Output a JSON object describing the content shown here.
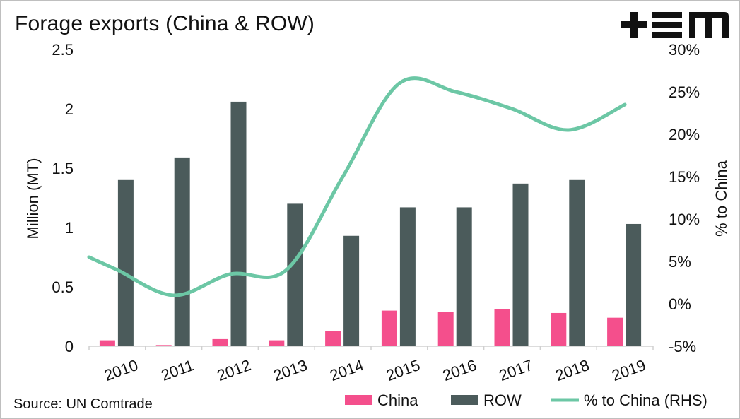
{
  "title": "Forage exports (China & ROW)",
  "source": "Source: UN Comtrade",
  "logo_icon": "tem-logo-icon",
  "colors": {
    "china": "#f44f8c",
    "row": "#4b5b5b",
    "line": "#6cc7a5",
    "axis": "#d0d0d0"
  },
  "chart_data": {
    "type": "bar",
    "categories": [
      "2010",
      "2011",
      "2012",
      "2013",
      "2014",
      "2015",
      "2016",
      "2017",
      "2018",
      "2019"
    ],
    "series": [
      {
        "name": "China",
        "type": "bar",
        "axis": "left",
        "values": [
          0.05,
          0.01,
          0.06,
          0.05,
          0.13,
          0.3,
          0.29,
          0.31,
          0.28,
          0.24
        ]
      },
      {
        "name": "ROW",
        "type": "bar",
        "axis": "left",
        "values": [
          1.4,
          1.59,
          2.06,
          1.2,
          0.93,
          1.17,
          1.17,
          1.37,
          1.4,
          1.03
        ]
      },
      {
        "name": "% to China (RHS)",
        "type": "line",
        "axis": "right",
        "values": [
          4.0,
          1.0,
          3.5,
          4.0,
          15.0,
          26.0,
          25.0,
          23.0,
          20.5,
          23.5
        ]
      }
    ],
    "ylabel": "Million (MT)",
    "ylim": [
      0,
      2.5
    ],
    "yticks": [
      "0",
      "0.5",
      "1",
      "1.5",
      "2",
      "2.5"
    ],
    "y2label": "% to China",
    "y2lim": [
      -5,
      30
    ],
    "y2ticks": [
      "-5%",
      "0%",
      "5%",
      "10%",
      "15%",
      "20%",
      "25%",
      "30%"
    ],
    "legend": [
      "China",
      "ROW",
      "% to China (RHS)"
    ],
    "legend_position": "bottom-right",
    "grid": false
  }
}
